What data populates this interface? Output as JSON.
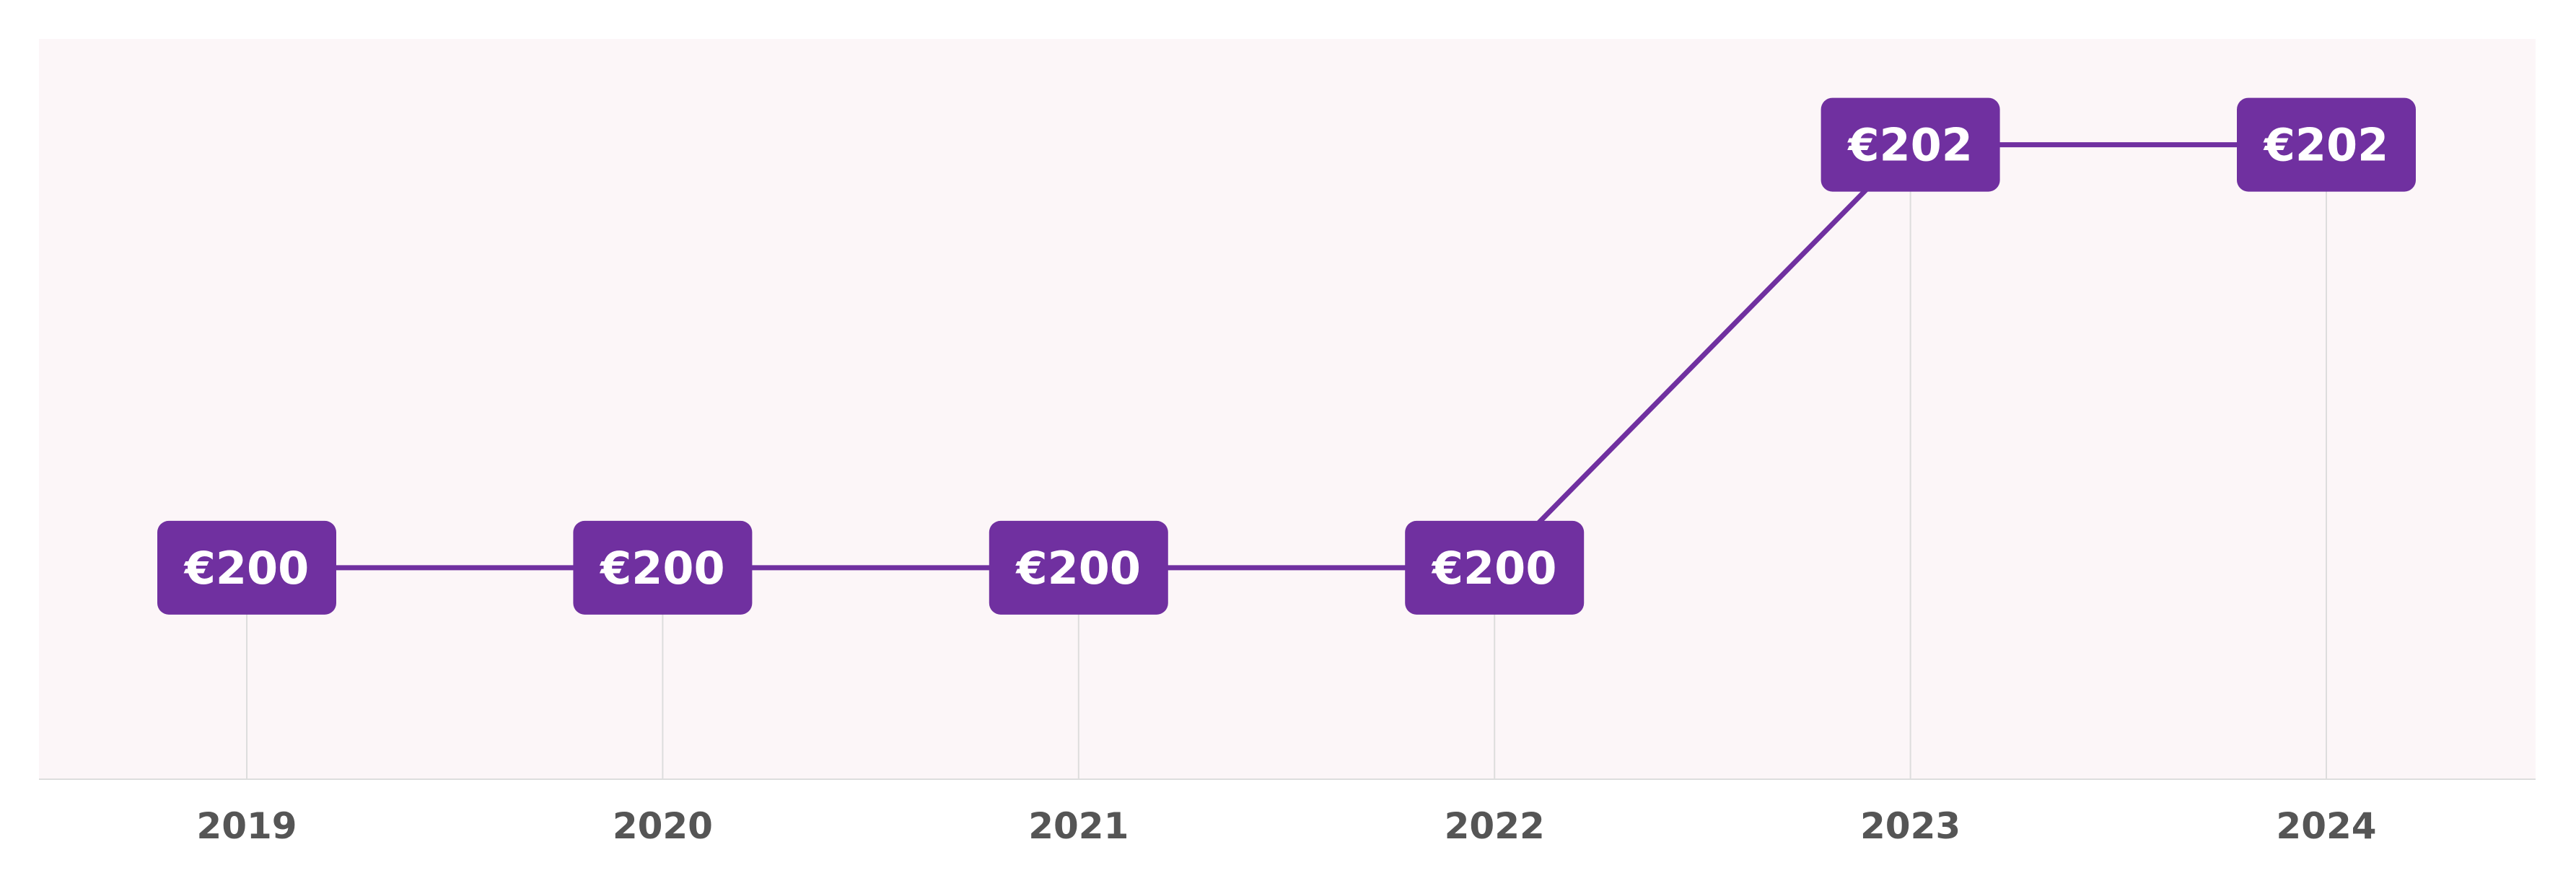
{
  "colors": {
    "plot_background": "#fcf6f8",
    "line": "#7030a0",
    "label_background": "#7030a0",
    "label_text": "#ffffff",
    "gridline": "#dddddd",
    "axis_line": "#dddddd",
    "tick_text": "#555555"
  },
  "chart_data": {
    "type": "line",
    "categories": [
      "2019",
      "2020",
      "2021",
      "2022",
      "2023",
      "2024"
    ],
    "series": [
      {
        "values": [
          200,
          200,
          200,
          200,
          202,
          202
        ],
        "data_labels": [
          "€200",
          "€200",
          "€200",
          "€200",
          "€202",
          "€202"
        ]
      }
    ],
    "title": "",
    "xlabel": "",
    "ylabel": "",
    "ylim": [
      199,
      202.5
    ],
    "grid": "vertical",
    "legend": "none"
  }
}
